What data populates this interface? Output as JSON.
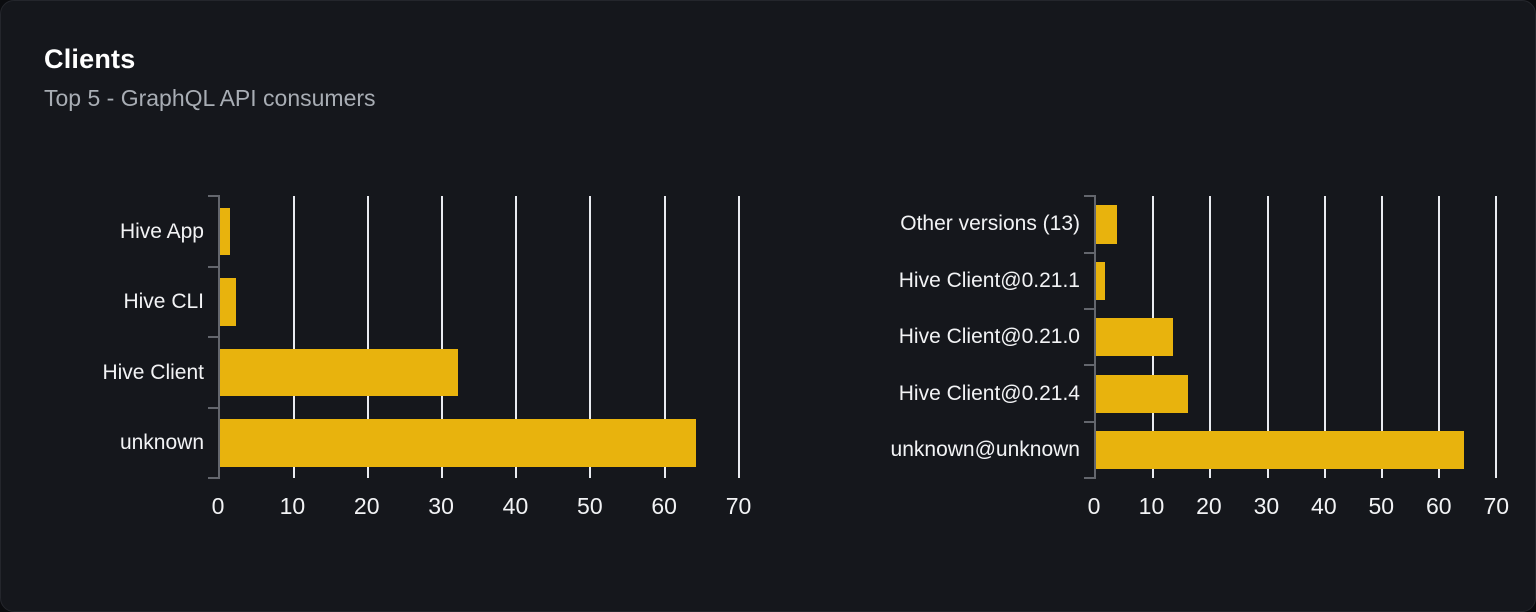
{
  "header": {
    "title": "Clients",
    "subtitle": "Top 5 - GraphQL API consumers"
  },
  "colors": {
    "page_bg": "#0b0c0f",
    "card_bg": "#15171c",
    "card_border": "#24262c",
    "bar": "#e8b30d",
    "gridline": "#e9ebf0",
    "axis": "#63666d",
    "text": "#f2f3f5",
    "subtitle_text": "#a8adb4"
  },
  "chart_data": [
    {
      "type": "bar",
      "orientation": "horizontal",
      "name": "clients-by-name",
      "title": "",
      "categories": [
        "Hive App",
        "Hive CLI",
        "Hive Client",
        "unknown"
      ],
      "values": [
        1.4,
        2.2,
        32.1,
        64.3
      ],
      "x_ticks": [
        0,
        10,
        20,
        30,
        40,
        50,
        60,
        70
      ],
      "xlim": [
        0,
        71
      ],
      "bar_color": "#e8b30d",
      "grid": "vertical",
      "legend": "none"
    },
    {
      "type": "bar",
      "orientation": "horizontal",
      "name": "clients-by-version",
      "title": "",
      "categories": [
        "Other versions (13)",
        "Hive Client@0.21.1",
        "Hive Client@0.21.0",
        "Hive Client@0.21.4",
        "unknown@unknown"
      ],
      "values": [
        3.6,
        1.5,
        13.4,
        16.1,
        64.4
      ],
      "x_ticks": [
        0,
        10,
        20,
        30,
        40,
        50,
        60,
        70
      ],
      "xlim": [
        0,
        71
      ],
      "bar_color": "#e8b30d",
      "grid": "vertical",
      "legend": "none"
    }
  ]
}
